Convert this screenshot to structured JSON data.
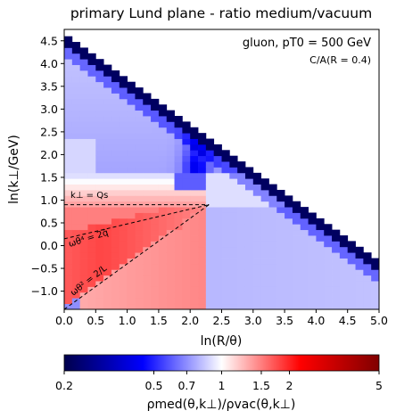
{
  "chart_data": {
    "type": "heatmap",
    "title": "primary Lund plane - ratio medium/vacuum",
    "xlabel": "ln(R/θ)",
    "ylabel": "ln(k⊥/GeV)",
    "xlim": [
      0,
      5
    ],
    "ylim": [
      -1.4,
      4.75
    ],
    "xticks": [
      0.0,
      0.5,
      1.0,
      1.5,
      2.0,
      2.5,
      3.0,
      3.5,
      4.0,
      4.5,
      5.0
    ],
    "xtick_labels": [
      "0.0",
      "0.5",
      "1.0",
      "1.5",
      "2.0",
      "2.5",
      "3.0",
      "3.5",
      "4.0",
      "4.5",
      "5.0"
    ],
    "yticks": [
      -1.0,
      -0.5,
      0.0,
      0.5,
      1.0,
      1.5,
      2.0,
      2.5,
      3.0,
      3.5,
      4.0,
      4.5
    ],
    "ytick_labels": [
      "−1.0",
      "−0.5",
      "0.0",
      "0.5",
      "1.0",
      "1.5",
      "2.0",
      "2.5",
      "3.0",
      "3.5",
      "4.0",
      "4.5"
    ],
    "bin_width": 0.125,
    "kinematic_limit": "ln(k⊥) = 4.6 − ln(R/θ)",
    "colorbar": {
      "scale": "log",
      "range": [
        0.2,
        5
      ],
      "ticks": [
        0.2,
        0.5,
        0.7,
        1,
        1.5,
        2,
        5
      ],
      "tick_labels": [
        "0.2",
        "0.5",
        "0.7",
        "1",
        "1.5",
        "2",
        "5"
      ],
      "label": "ρmed(θ,k⊥)/ρvac(θ,k⊥)"
    },
    "annotations": [
      {
        "text": "gluon, pT0 = 500 GeV"
      },
      {
        "text": "C/A(R = 0.4)"
      },
      {
        "text": "k⊥ = Qs",
        "line": [
          [
            0,
            0.9
          ],
          [
            2.3,
            0.9
          ]
        ]
      },
      {
        "text": "ωθ⁴ = 2q̂",
        "line": [
          [
            0,
            0.15
          ],
          [
            2.3,
            0.9
          ]
        ]
      },
      {
        "text": "ωθ² = 2/L",
        "line": [
          [
            0,
            -1.4
          ],
          [
            2.3,
            0.9
          ]
        ]
      }
    ],
    "approx_values": {
      "edge_diagonal": 0.22,
      "upper_left_region": 0.75,
      "column_near_x2": 0.45,
      "red_wedge_core": 1.8,
      "lower_right_region": 0.8,
      "bottom_left_corner": 0.7
    }
  }
}
